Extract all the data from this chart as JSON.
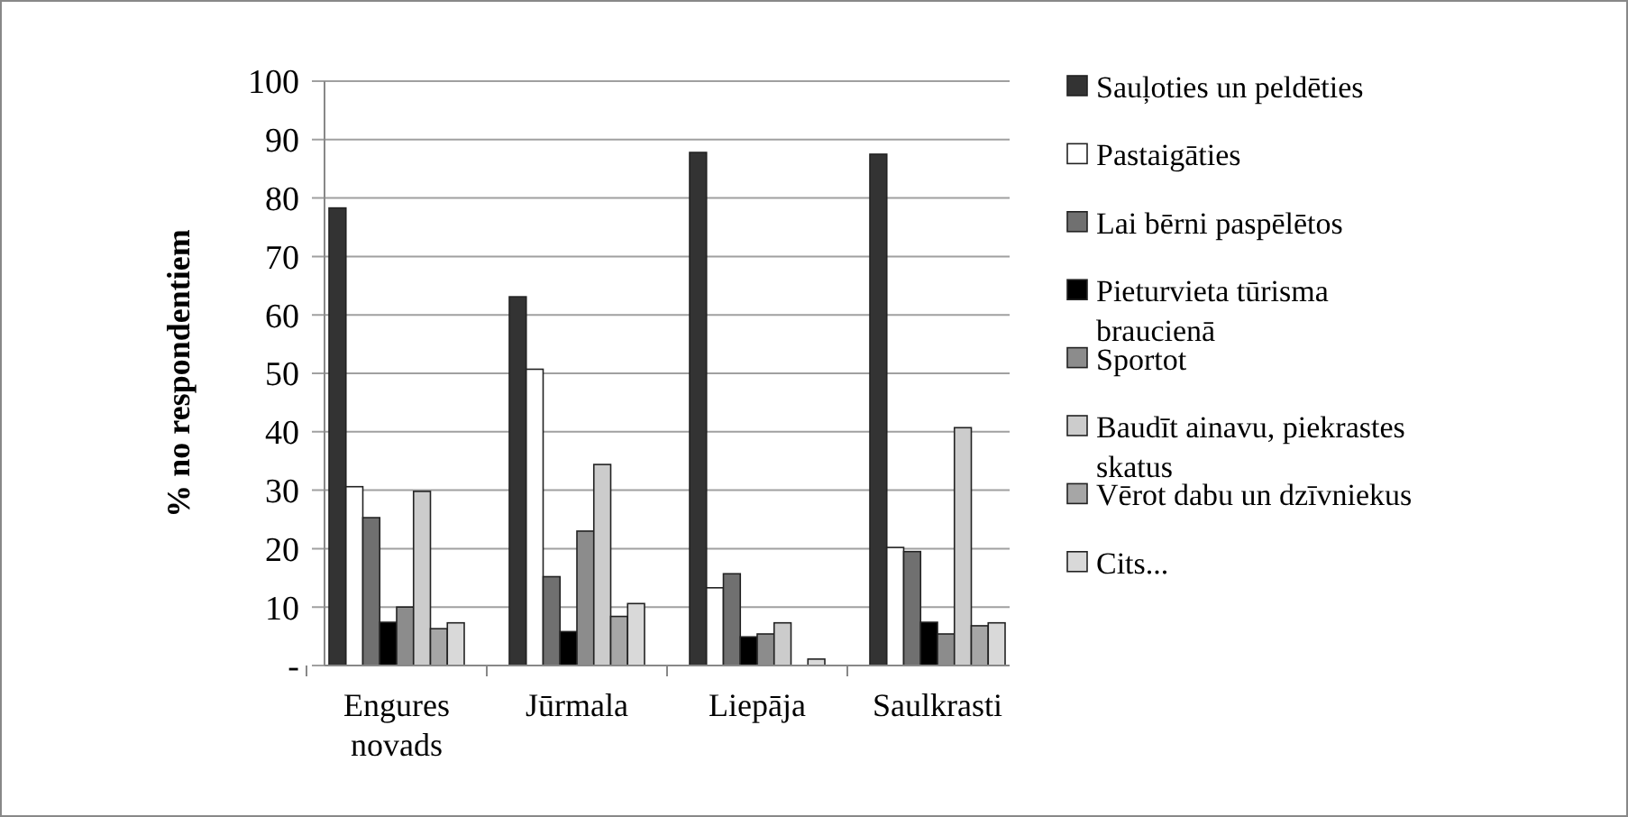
{
  "chart_data": {
    "type": "bar",
    "ylabel": "% no respondentiem",
    "categories": [
      "Engures novads",
      "Jūrmala",
      "Liepāja",
      "Saulkrasti"
    ],
    "series": [
      {
        "name": "Sauļoties un peldēties",
        "color": "#333333",
        "values": [
          78.3,
          63.1,
          87.8,
          87.5
        ]
      },
      {
        "name": "Pastaigāties",
        "color": "#ffffff",
        "values": [
          30.6,
          50.7,
          13.3,
          20.2
        ]
      },
      {
        "name": "Lai bērni paspēlētos",
        "color": "#707070",
        "values": [
          25.3,
          15.2,
          15.7,
          19.5
        ]
      },
      {
        "name": "Pieturvieta tūrisma braucienā",
        "color": "#000000",
        "values": [
          7.4,
          5.8,
          4.9,
          7.4
        ]
      },
      {
        "name": "Sportot",
        "color": "#8c8c8c",
        "values": [
          10.0,
          23.0,
          5.4,
          5.4
        ]
      },
      {
        "name": "Baudīt ainavu, piekrastes skatus",
        "color": "#cccccc",
        "values": [
          29.8,
          34.4,
          7.3,
          40.7
        ]
      },
      {
        "name": "Vērot dabu un dzīvniekus",
        "color": "#a6a6a6",
        "values": [
          6.3,
          8.4,
          0,
          6.8
        ]
      },
      {
        "name": "Cits...",
        "color": "#d9d9d9",
        "values": [
          7.3,
          10.6,
          1.1,
          7.3
        ]
      }
    ],
    "ylim": [
      0,
      100
    ],
    "yticks": [
      {
        "value": 0,
        "label": "-"
      },
      10,
      20,
      30,
      40,
      50,
      60,
      70,
      80,
      90,
      100
    ],
    "grid": "y",
    "legend": "right"
  }
}
